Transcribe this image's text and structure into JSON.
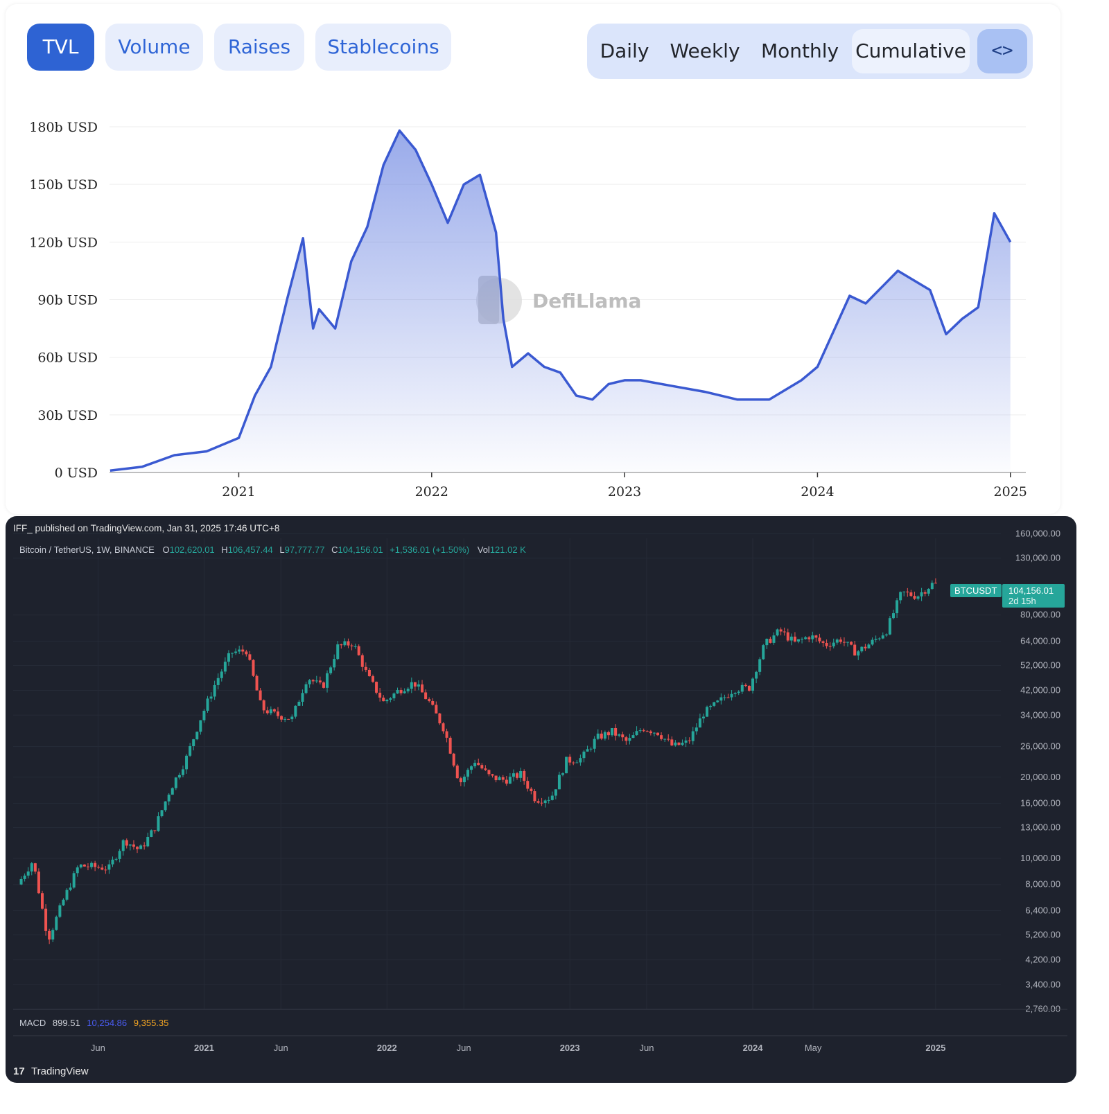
{
  "tabs": [
    {
      "label": "TVL",
      "active": true
    },
    {
      "label": "Volume",
      "active": false
    },
    {
      "label": "Raises",
      "active": false
    },
    {
      "label": "Stablecoins",
      "active": false
    }
  ],
  "periods": [
    {
      "label": "Daily",
      "selected": false
    },
    {
      "label": "Weekly",
      "selected": false
    },
    {
      "label": "Monthly",
      "selected": false
    },
    {
      "label": "Cumulative",
      "selected": true
    }
  ],
  "embed_label": "<>",
  "watermark": "DefiLlama",
  "colors": {
    "tvl_line": "#3a59d1",
    "tab_active": "#2e63d3",
    "tv_up": "#26a69a",
    "tv_down": "#ef5350",
    "tv_bg": "#1e222d"
  },
  "chart_data": [
    {
      "type": "area",
      "y_ticks": [
        "0 USD",
        "30b USD",
        "60b USD",
        "90b USD",
        "120b USD",
        "150b USD",
        "180b USD"
      ],
      "x_ticks": [
        "2021",
        "2022",
        "2023",
        "2024",
        "2025"
      ],
      "ylim": [
        0,
        180
      ],
      "y_unit": "b USD",
      "grid": true,
      "series": [
        {
          "x": [
            "2020-05",
            "2020-07",
            "2020-09",
            "2020-11",
            "2021-01",
            "2021-02",
            "2021-03",
            "2021-04",
            "2021-05",
            "2021-05-20",
            "2021-06",
            "2021-07",
            "2021-08",
            "2021-09",
            "2021-10",
            "2021-11",
            "2021-12",
            "2022-01",
            "2022-02",
            "2022-03",
            "2022-04",
            "2022-05",
            "2022-05-15",
            "2022-06",
            "2022-07",
            "2022-08",
            "2022-09",
            "2022-10",
            "2022-11",
            "2022-12",
            "2023-01",
            "2023-02",
            "2023-04",
            "2023-06",
            "2023-08",
            "2023-10",
            "2023-12",
            "2024-01",
            "2024-03",
            "2024-04",
            "2024-06",
            "2024-08",
            "2024-09",
            "2024-10",
            "2024-11",
            "2024-12",
            "2025-01"
          ],
          "y": [
            1,
            3,
            9,
            11,
            18,
            40,
            55,
            90,
            122,
            75,
            85,
            75,
            110,
            128,
            160,
            178,
            168,
            150,
            130,
            150,
            155,
            125,
            80,
            55,
            62,
            55,
            52,
            40,
            38,
            46,
            48,
            48,
            45,
            42,
            38,
            38,
            48,
            55,
            92,
            88,
            105,
            95,
            72,
            80,
            86,
            135,
            120
          ]
        }
      ]
    },
    {
      "type": "candlestick",
      "publisher": "IFF_ published on TradingView.com, Jan 31, 2025 17:46 UTC+8",
      "symbol": "Bitcoin / TetherUS, 1W, BINANCE",
      "ohlc": {
        "o_label": "O",
        "o": "102,620.01",
        "h_label": "H",
        "h": "106,457.44",
        "l_label": "L",
        "l": "97,777.77",
        "c_label": "C",
        "c": "104,156.01",
        "change": "+1,536.01 (+1.50%)",
        "vol_label": "Vol",
        "vol": "121.02 K"
      },
      "scale": "log",
      "y_ticks": [
        "160,000.00",
        "130,000.00",
        "80,000.00",
        "64,000.00",
        "52,000.00",
        "42,000.00",
        "34,000.00",
        "26,000.00",
        "20,000.00",
        "16,000.00",
        "13,000.00",
        "10,000.00",
        "8,000.00",
        "6,400.00",
        "5,200.00",
        "4,200.00",
        "3,400.00",
        "2,760.00"
      ],
      "x_ticks": [
        "Jun",
        "2021",
        "Jun",
        "2022",
        "Jun",
        "2023",
        "Jun",
        "2024",
        "May",
        "2025"
      ],
      "last_price_tag": {
        "symbol": "BTCUSDT",
        "price": "104,156.01",
        "countdown": "2d 15h"
      },
      "macd": {
        "label": "MACD",
        "v1": "899.51",
        "v2": "10,254.86",
        "v3": "9,355.35"
      },
      "brand": "TradingView",
      "price_path": [
        [
          "2020-01",
          8000
        ],
        [
          "2020-02",
          9800
        ],
        [
          "2020-03",
          5000
        ],
        [
          "2020-04",
          7000
        ],
        [
          "2020-05",
          9400
        ],
        [
          "2020-07",
          9200
        ],
        [
          "2020-08",
          11700
        ],
        [
          "2020-09",
          10700
        ],
        [
          "2020-10",
          13000
        ],
        [
          "2020-11",
          18000
        ],
        [
          "2020-12",
          23000
        ],
        [
          "2021-01",
          33000
        ],
        [
          "2021-02",
          45000
        ],
        [
          "2021-03",
          58000
        ],
        [
          "2021-04",
          59000
        ],
        [
          "2021-05",
          36000
        ],
        [
          "2021-06",
          34000
        ],
        [
          "2021-07",
          33000
        ],
        [
          "2021-08",
          47000
        ],
        [
          "2021-09",
          43000
        ],
        [
          "2021-10",
          61000
        ],
        [
          "2021-11",
          63000
        ],
        [
          "2021-12",
          47000
        ],
        [
          "2022-01",
          38000
        ],
        [
          "2022-02",
          42000
        ],
        [
          "2022-03",
          45000
        ],
        [
          "2022-04",
          38000
        ],
        [
          "2022-05",
          30000
        ],
        [
          "2022-06",
          19000
        ],
        [
          "2022-07",
          23000
        ],
        [
          "2022-08",
          20000
        ],
        [
          "2022-09",
          19500
        ],
        [
          "2022-10",
          20500
        ],
        [
          "2022-11",
          16500
        ],
        [
          "2022-12",
          16800
        ],
        [
          "2023-01",
          23000
        ],
        [
          "2023-02",
          23500
        ],
        [
          "2023-03",
          28000
        ],
        [
          "2023-04",
          29500
        ],
        [
          "2023-05",
          27000
        ],
        [
          "2023-06",
          30500
        ],
        [
          "2023-07",
          29300
        ],
        [
          "2023-08",
          26000
        ],
        [
          "2023-09",
          27000
        ],
        [
          "2023-10",
          34500
        ],
        [
          "2023-11",
          38000
        ],
        [
          "2023-12",
          42500
        ],
        [
          "2024-01",
          43000
        ],
        [
          "2024-02",
          62000
        ],
        [
          "2024-03",
          70000
        ],
        [
          "2024-04",
          63000
        ],
        [
          "2024-05",
          67000
        ],
        [
          "2024-06",
          62000
        ],
        [
          "2024-07",
          65000
        ],
        [
          "2024-08",
          58000
        ],
        [
          "2024-09",
          63000
        ],
        [
          "2024-10",
          70000
        ],
        [
          "2024-11",
          97000
        ],
        [
          "2024-12",
          94000
        ],
        [
          "2025-01",
          104156
        ]
      ]
    }
  ]
}
